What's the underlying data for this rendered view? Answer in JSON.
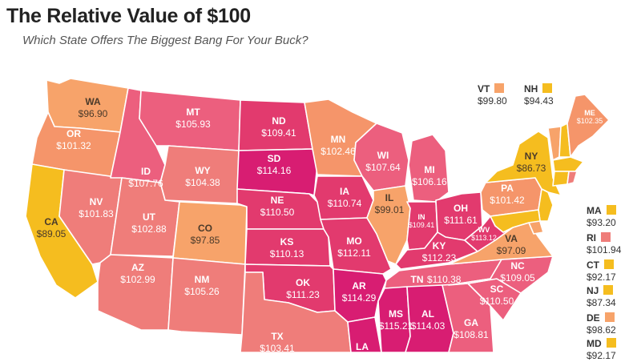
{
  "title": "The Relative Value of $100",
  "subtitle": "Which State Offers The Biggest Bang For Your Buck?",
  "colors": {
    "lightest": "#f7a36a",
    "light": "#f5956a",
    "coral": "#ef7d7a",
    "pink": "#ec5f7e",
    "deep": "#e23a6e",
    "deepest": "#d81d72",
    "yellow": "#f5bd1f",
    "gold": "#f8c32a"
  },
  "states": {
    "WA": {
      "abbr": "WA",
      "value": "$96.90"
    },
    "OR": {
      "abbr": "OR",
      "value": "$101.32"
    },
    "CA": {
      "abbr": "CA",
      "value": "$89.05"
    },
    "NV": {
      "abbr": "NV",
      "value": "$101.83"
    },
    "ID": {
      "abbr": "ID",
      "value": "$107.76"
    },
    "MT": {
      "abbr": "MT",
      "value": "$105.93"
    },
    "WY": {
      "abbr": "WY",
      "value": "$104.38"
    },
    "UT": {
      "abbr": "UT",
      "value": "$102.88"
    },
    "CO": {
      "abbr": "CO",
      "value": "$97.85"
    },
    "AZ": {
      "abbr": "AZ",
      "value": "$102.99"
    },
    "NM": {
      "abbr": "NM",
      "value": "$105.26"
    },
    "ND": {
      "abbr": "ND",
      "value": "$109.41"
    },
    "SD": {
      "abbr": "SD",
      "value": "$114.16"
    },
    "NE": {
      "abbr": "NE",
      "value": "$110.50"
    },
    "KS": {
      "abbr": "KS",
      "value": "$110.13"
    },
    "OK": {
      "abbr": "OK",
      "value": "$111.23"
    },
    "TX": {
      "abbr": "TX",
      "value": "$103.41"
    },
    "MN": {
      "abbr": "MN",
      "value": "$102.46"
    },
    "IA": {
      "abbr": "IA",
      "value": "$110.74"
    },
    "MO": {
      "abbr": "MO",
      "value": "$112.11"
    },
    "AR": {
      "abbr": "AR",
      "value": "$114.29"
    },
    "LA": {
      "abbr": "LA",
      "value": ""
    },
    "WI": {
      "abbr": "WI",
      "value": "$107.64"
    },
    "IL": {
      "abbr": "IL",
      "value": "$99.01"
    },
    "MI": {
      "abbr": "MI",
      "value": "$106.16"
    },
    "IN": {
      "abbr": "IN",
      "value": "$109.41"
    },
    "OH": {
      "abbr": "OH",
      "value": "$111.61"
    },
    "KY": {
      "abbr": "KY",
      "value": "$112.23"
    },
    "TN": {
      "abbr": "TN",
      "value": "$110.38"
    },
    "MS": {
      "abbr": "MS",
      "value": "$115.21"
    },
    "AL": {
      "abbr": "AL",
      "value": "$114.03"
    },
    "GA": {
      "abbr": "GA",
      "value": "$108.81"
    },
    "SC": {
      "abbr": "SC",
      "value": "$110.50"
    },
    "NC": {
      "abbr": "NC",
      "value": "$109.05"
    },
    "VA": {
      "abbr": "VA",
      "value": "$97.09"
    },
    "WV": {
      "abbr": "WV",
      "value": "$113.12"
    },
    "PA": {
      "abbr": "PA",
      "value": "$101.42"
    },
    "NY": {
      "abbr": "NY",
      "value": "$86.73"
    },
    "ME": {
      "abbr": "ME",
      "value": "$102.35"
    }
  },
  "callouts": {
    "VT": {
      "abbr": "VT",
      "value": "$99.80"
    },
    "NH": {
      "abbr": "NH",
      "value": "$94.43"
    },
    "MA": {
      "abbr": "MA",
      "value": "$93.20"
    },
    "RI": {
      "abbr": "RI",
      "value": "$101.94"
    },
    "CT": {
      "abbr": "CT",
      "value": "$92.17"
    },
    "NJ": {
      "abbr": "NJ",
      "value": "$87.34"
    },
    "DE": {
      "abbr": "DE",
      "value": "$98.62"
    },
    "MD": {
      "abbr": "MD",
      "value": "$92.17"
    }
  }
}
